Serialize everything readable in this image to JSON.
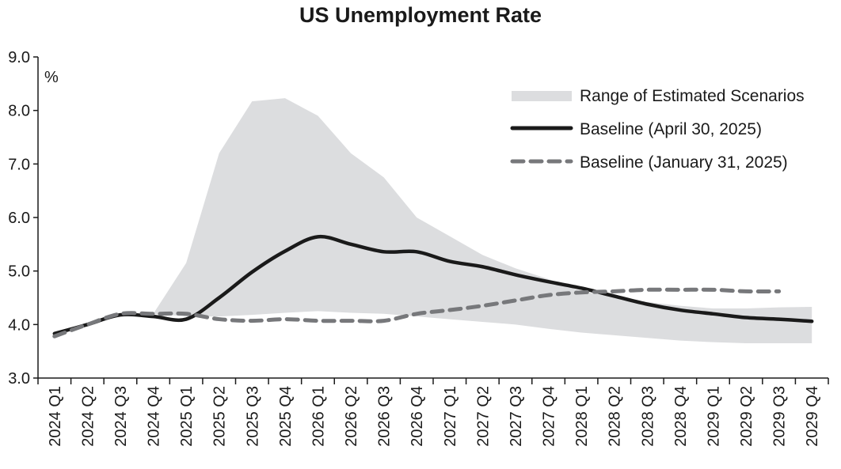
{
  "chart_data": {
    "type": "line",
    "title": "US Unemployment Rate",
    "ylabel": "%",
    "xlabel": "",
    "ylim": [
      3.0,
      9.0
    ],
    "yticks": [
      "3.0",
      "4.0",
      "5.0",
      "6.0",
      "7.0",
      "8.0",
      "9.0"
    ],
    "categories": [
      "2024 Q1",
      "2024 Q2",
      "2024 Q3",
      "2024 Q4",
      "2025 Q1",
      "2025 Q2",
      "2025 Q3",
      "2025 Q4",
      "2026 Q1",
      "2026 Q2",
      "2026 Q3",
      "2026 Q4",
      "2027 Q1",
      "2027 Q2",
      "2027 Q3",
      "2027 Q4",
      "2028 Q1",
      "2028 Q2",
      "2028 Q3",
      "2028 Q4",
      "2029 Q1",
      "2029 Q2",
      "2029 Q3",
      "2029 Q4"
    ],
    "range": {
      "name": "Range of Estimated Scenarios",
      "color": "#dcdddf",
      "upper": [
        3.8,
        4.0,
        4.2,
        4.2,
        5.15,
        7.2,
        8.17,
        8.23,
        7.9,
        7.2,
        6.75,
        6.0,
        5.65,
        5.3,
        5.05,
        4.85,
        4.62,
        4.52,
        4.42,
        4.35,
        4.3,
        4.3,
        4.32,
        4.33
      ],
      "lower": [
        3.8,
        4.0,
        4.2,
        4.2,
        4.15,
        4.15,
        4.18,
        4.22,
        4.25,
        4.22,
        4.2,
        4.15,
        4.1,
        4.05,
        4.0,
        3.92,
        3.85,
        3.8,
        3.75,
        3.7,
        3.67,
        3.65,
        3.65,
        3.65
      ]
    },
    "series": [
      {
        "name": "Baseline (April 30, 2025)",
        "color": "#1a1a1a",
        "dash": "solid",
        "values": [
          3.83,
          4.0,
          4.18,
          4.15,
          4.1,
          4.5,
          4.98,
          5.37,
          5.64,
          5.5,
          5.36,
          5.36,
          5.18,
          5.08,
          4.93,
          4.8,
          4.68,
          4.53,
          4.38,
          4.27,
          4.2,
          4.13,
          4.1,
          4.06
        ]
      },
      {
        "name": "Baseline (January 31, 2025)",
        "color": "#77787b",
        "dash": "dashed",
        "values": [
          3.78,
          4.0,
          4.2,
          4.2,
          4.2,
          4.1,
          4.07,
          4.1,
          4.07,
          4.07,
          4.07,
          4.2,
          4.27,
          4.35,
          4.45,
          4.55,
          4.6,
          4.62,
          4.65,
          4.65,
          4.65,
          4.62,
          4.62,
          null
        ]
      }
    ],
    "legend_position": "top-right",
    "grid": false
  }
}
